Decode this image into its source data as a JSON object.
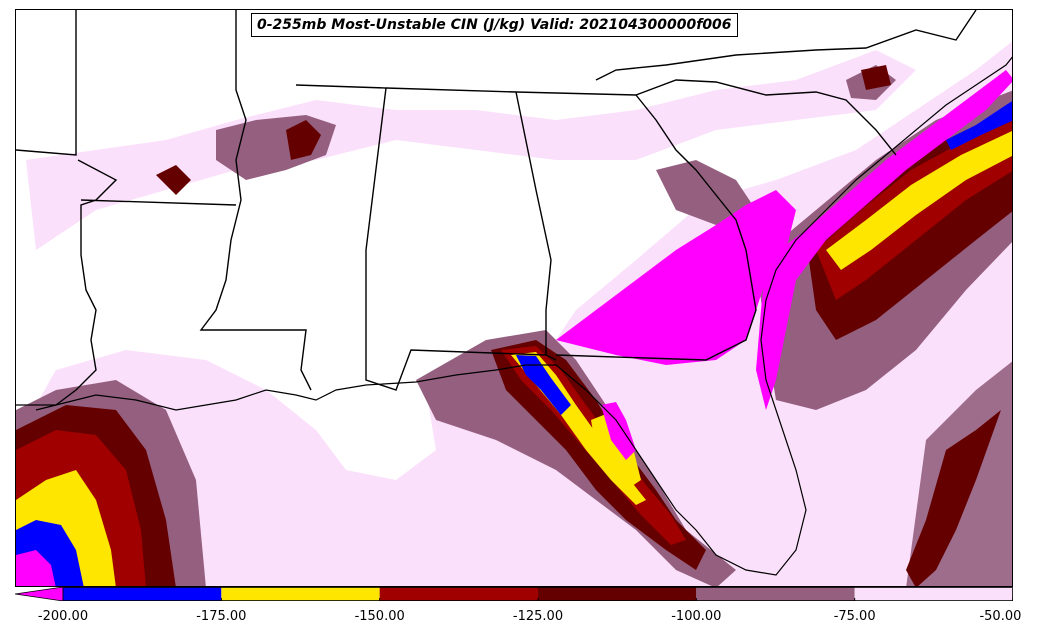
{
  "title": "0-255mb Most-Unstable CIN (J/kg) Valid: 202104300000f006",
  "colorbar": {
    "ticks": [
      "-200.00",
      "-175.00",
      "-150.00",
      "-125.00",
      "-100.00",
      "-75.00",
      "-50.00"
    ],
    "bins": [
      {
        "from": -200,
        "to": -175,
        "color": "#0000ff"
      },
      {
        "from": -175,
        "to": -150,
        "color": "#ffe600"
      },
      {
        "from": -150,
        "to": -125,
        "color": "#a00000"
      },
      {
        "from": -125,
        "to": -100,
        "color": "#640000"
      },
      {
        "from": -100,
        "to": -75,
        "color": "#956080"
      },
      {
        "from": -75,
        "to": -50,
        "color": "#fbe0fb"
      }
    ],
    "under_color": "#ff00ff",
    "extend": "min"
  },
  "colors": {
    "very_light": "#fbe0fb",
    "mauve": "#956080",
    "dark_red": "#640000",
    "red": "#a00000",
    "yellow": "#ffe600",
    "blue": "#0000ff",
    "magenta": "#ff00ff",
    "boundary": "#000000"
  }
}
